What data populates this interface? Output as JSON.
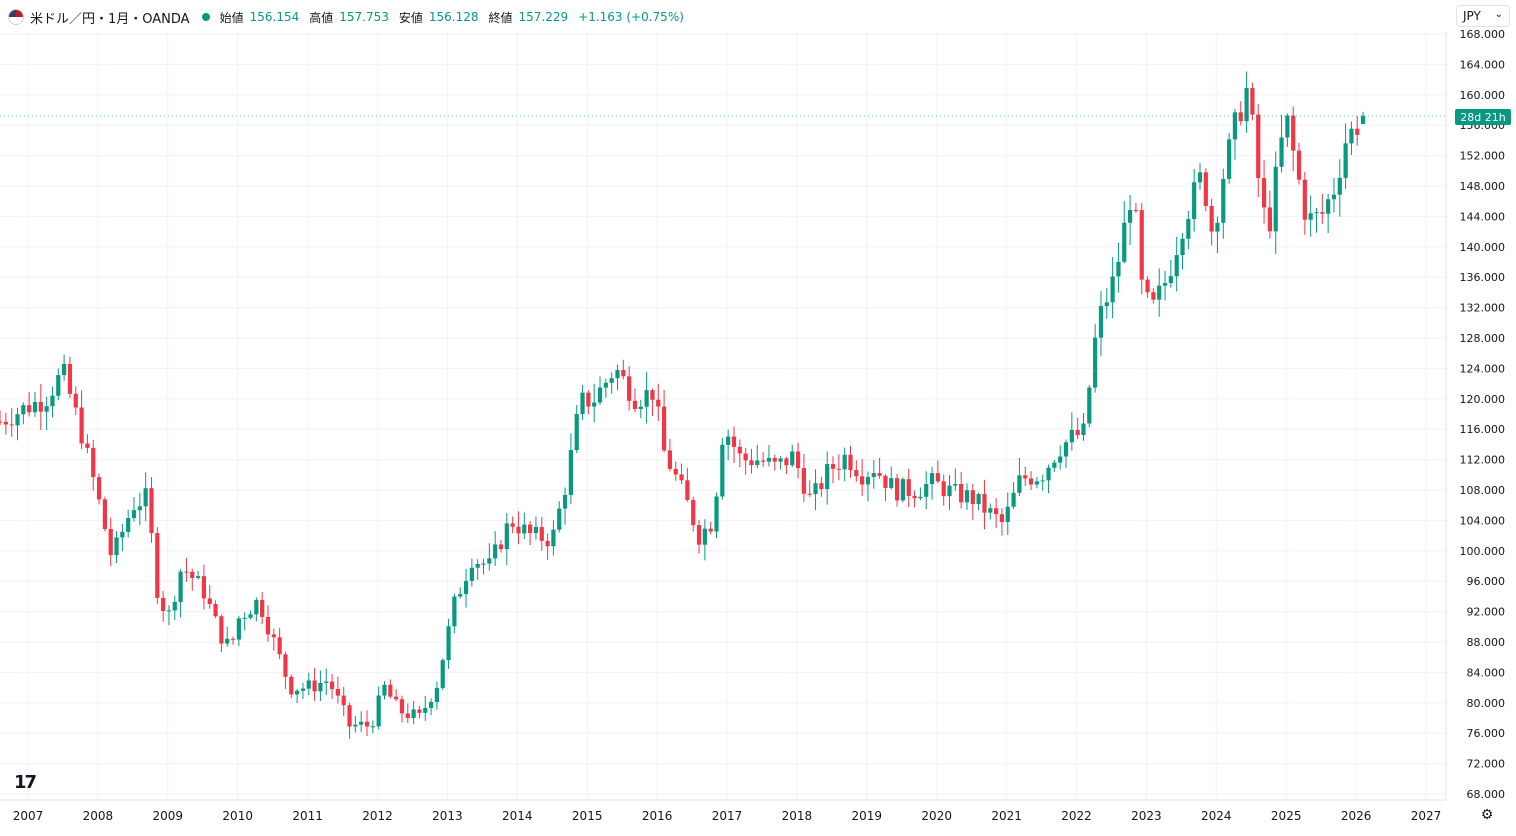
{
  "header": {
    "symbol": "米ドル／円・1月・OANDA",
    "open_label": "始値",
    "open_value": "156.154",
    "high_label": "高値",
    "high_value": "157.753",
    "low_label": "安値",
    "low_value": "156.128",
    "close_label": "終値",
    "close_value": "157.229",
    "change": "+1.163 (+0.75%)"
  },
  "currency_select": {
    "value": "JPY",
    "chevron": "⌄"
  },
  "countdown": "28d 21h",
  "logo_text": "17",
  "colors": {
    "up": "#089981",
    "down": "#f23645",
    "grid": "#f0f3fa",
    "text": "#131722"
  },
  "icons": {
    "settings": "gear-icon",
    "flag": "us-flag-icon",
    "logo": "tradingview-logo-icon"
  },
  "chart_data": {
    "type": "candlestick",
    "title": "USD/JPY Monthly (OANDA)",
    "y_ticks": [
      "68.000",
      "72.000",
      "76.000",
      "80.000",
      "84.000",
      "88.000",
      "92.000",
      "96.000",
      "100.000",
      "104.000",
      "108.000",
      "112.000",
      "116.000",
      "120.000",
      "124.000",
      "128.000",
      "132.000",
      "136.000",
      "140.000",
      "144.000",
      "148.000",
      "152.000",
      "156.000",
      "160.000",
      "164.000",
      "168.000"
    ],
    "ylim": [
      68,
      168
    ],
    "x_ticks": [
      "2007",
      "2008",
      "2009",
      "2010",
      "2011",
      "2012",
      "2013",
      "2014",
      "2015",
      "2016",
      "2017",
      "2018",
      "2019",
      "2020",
      "2021",
      "2022",
      "2023",
      "2024",
      "2025",
      "2026",
      "2027"
    ],
    "xlim": [
      2006.65,
      2027.4
    ],
    "anchors": [
      [
        2006.6,
        117
      ],
      [
        2007.0,
        119
      ],
      [
        2007.25,
        120
      ],
      [
        2007.5,
        123.5
      ],
      [
        2007.75,
        116
      ],
      [
        2008.0,
        107
      ],
      [
        2008.2,
        99
      ],
      [
        2008.5,
        106
      ],
      [
        2008.7,
        107
      ],
      [
        2008.85,
        95
      ],
      [
        2009.0,
        91
      ],
      [
        2009.2,
        98
      ],
      [
        2009.5,
        95
      ],
      [
        2009.75,
        89
      ],
      [
        2009.9,
        87
      ],
      [
        2010.0,
        91
      ],
      [
        2010.3,
        93.5
      ],
      [
        2010.5,
        88.5
      ],
      [
        2010.75,
        82
      ],
      [
        2011.0,
        82
      ],
      [
        2011.3,
        83
      ],
      [
        2011.6,
        77
      ],
      [
        2011.9,
        77
      ],
      [
        2012.1,
        82
      ],
      [
        2012.3,
        79
      ],
      [
        2012.6,
        78
      ],
      [
        2012.85,
        82.5
      ],
      [
        2013.1,
        93
      ],
      [
        2013.35,
        99
      ],
      [
        2013.6,
        98
      ],
      [
        2013.9,
        104
      ],
      [
        2014.2,
        102
      ],
      [
        2014.5,
        101.5
      ],
      [
        2014.7,
        109
      ],
      [
        2014.9,
        119.5
      ],
      [
        2015.1,
        120
      ],
      [
        2015.4,
        124
      ],
      [
        2015.7,
        120
      ],
      [
        2015.95,
        121
      ],
      [
        2016.1,
        113
      ],
      [
        2016.4,
        107
      ],
      [
        2016.6,
        102
      ],
      [
        2016.8,
        104
      ],
      [
        2016.95,
        116.5
      ],
      [
        2017.2,
        112
      ],
      [
        2017.45,
        112
      ],
      [
        2017.7,
        111
      ],
      [
        2017.95,
        112.5
      ],
      [
        2018.2,
        106.5
      ],
      [
        2018.45,
        110.5
      ],
      [
        2018.7,
        112.5
      ],
      [
        2018.95,
        110
      ],
      [
        2019.1,
        111
      ],
      [
        2019.4,
        108
      ],
      [
        2019.7,
        108
      ],
      [
        2019.95,
        109
      ],
      [
        2020.25,
        107.5
      ],
      [
        2020.5,
        107
      ],
      [
        2020.75,
        105
      ],
      [
        2020.95,
        103.5
      ],
      [
        2021.2,
        109.5
      ],
      [
        2021.5,
        110
      ],
      [
        2021.75,
        113.5
      ],
      [
        2021.95,
        115
      ],
      [
        2022.1,
        115.5
      ],
      [
        2022.3,
        130
      ],
      [
        2022.55,
        136
      ],
      [
        2022.8,
        148
      ],
      [
        2022.95,
        133
      ],
      [
        2023.1,
        132
      ],
      [
        2023.3,
        136
      ],
      [
        2023.55,
        144
      ],
      [
        2023.8,
        149.5
      ],
      [
        2023.95,
        141.5
      ],
      [
        2024.1,
        149.5
      ],
      [
        2024.3,
        157
      ],
      [
        2024.45,
        161
      ],
      [
        2024.65,
        145
      ],
      [
        2024.75,
        142.5
      ],
      [
        2024.9,
        152
      ],
      [
        2025.0,
        157
      ],
      [
        2025.15,
        150
      ],
      [
        2025.3,
        143.5
      ],
      [
        2025.5,
        144
      ],
      [
        2025.7,
        148
      ],
      [
        2025.85,
        154
      ],
      [
        2026.05,
        156.5
      ],
      [
        2026.12,
        157.2
      ]
    ]
  }
}
